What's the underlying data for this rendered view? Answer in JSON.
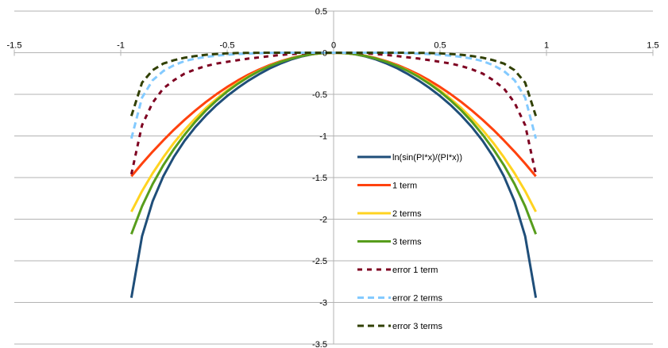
{
  "chart_data": {
    "type": "line",
    "title": "",
    "xlabel": "",
    "ylabel": "",
    "xlim": [
      -1.5,
      1.5
    ],
    "ylim": [
      -3.5,
      0.5
    ],
    "x_ticks": [
      -1.5,
      -1,
      -0.5,
      0,
      0.5,
      1,
      1.5
    ],
    "y_ticks": [
      0.5,
      0,
      -0.5,
      -1,
      -1.5,
      -2,
      -2.5,
      -3,
      -3.5
    ],
    "x_tick_labels": [
      "-1.5",
      "-1",
      "-0.5",
      "0",
      "0.5",
      "1",
      "1.5"
    ],
    "y_tick_labels": [
      "0.5",
      "0",
      "-0.5",
      "-1",
      "-1.5",
      "-2",
      "-2.5",
      "-3",
      "-3.5"
    ],
    "grid": "horizontal",
    "legend": "center-right",
    "series": [
      {
        "name": "ln(sin(PI*x)/(PI*x))",
        "color": "#1f4e79",
        "style": "solid",
        "x": [
          -0.95,
          -0.9,
          -0.85,
          -0.8,
          -0.75,
          -0.7,
          -0.65,
          -0.6,
          -0.55,
          -0.5,
          -0.45,
          -0.4,
          -0.35,
          -0.3,
          -0.25,
          -0.2,
          -0.15,
          -0.1,
          -0.05,
          0,
          0.05,
          0.1,
          0.15,
          0.2,
          0.25,
          0.3,
          0.35,
          0.4,
          0.45,
          0.5,
          0.55,
          0.6,
          0.65,
          0.7,
          0.75,
          0.8,
          0.85,
          0.9,
          0.95
        ],
        "y": [
          -2.944,
          -2.206,
          -1.784,
          -1.484,
          -1.25,
          -1.058,
          -0.895,
          -0.754,
          -0.63,
          -0.52,
          -0.423,
          -0.335,
          -0.258,
          -0.189,
          -0.13,
          -0.082,
          -0.045,
          -0.018,
          -0.004,
          0,
          -0.004,
          -0.018,
          -0.045,
          -0.082,
          -0.13,
          -0.189,
          -0.258,
          -0.335,
          -0.423,
          -0.52,
          -0.63,
          -0.754,
          -0.895,
          -1.058,
          -1.25,
          -1.484,
          -1.784,
          -2.206,
          -2.944
        ]
      },
      {
        "name": "1 term",
        "color": "#ff420e",
        "style": "solid",
        "x": [
          -0.95,
          -0.9,
          -0.85,
          -0.8,
          -0.75,
          -0.7,
          -0.65,
          -0.6,
          -0.55,
          -0.5,
          -0.45,
          -0.4,
          -0.35,
          -0.3,
          -0.25,
          -0.2,
          -0.15,
          -0.1,
          -0.05,
          0,
          0.05,
          0.1,
          0.15,
          0.2,
          0.25,
          0.3,
          0.35,
          0.4,
          0.45,
          0.5,
          0.55,
          0.6,
          0.65,
          0.7,
          0.75,
          0.8,
          0.85,
          0.9,
          0.95
        ],
        "y": [
          -1.485,
          -1.332,
          -1.189,
          -1.053,
          -0.925,
          -0.806,
          -0.695,
          -0.592,
          -0.498,
          -0.411,
          -0.333,
          -0.263,
          -0.202,
          -0.148,
          -0.103,
          -0.066,
          -0.037,
          -0.016,
          -0.004,
          0,
          -0.004,
          -0.016,
          -0.037,
          -0.066,
          -0.103,
          -0.148,
          -0.202,
          -0.263,
          -0.333,
          -0.411,
          -0.498,
          -0.592,
          -0.695,
          -0.806,
          -0.925,
          -1.053,
          -1.189,
          -1.332,
          -1.485
        ]
      },
      {
        "name": "2 terms",
        "color": "#ffd320",
        "style": "solid",
        "x": [
          -0.95,
          -0.9,
          -0.85,
          -0.8,
          -0.75,
          -0.7,
          -0.65,
          -0.6,
          -0.55,
          -0.5,
          -0.45,
          -0.4,
          -0.35,
          -0.3,
          -0.25,
          -0.2,
          -0.15,
          -0.1,
          -0.05,
          0,
          0.05,
          0.1,
          0.15,
          0.2,
          0.25,
          0.3,
          0.35,
          0.4,
          0.45,
          0.5,
          0.55,
          0.6,
          0.65,
          0.7,
          0.75,
          0.8,
          0.85,
          0.9,
          0.95
        ],
        "y": [
          -1.91,
          -1.663,
          -1.448,
          -1.256,
          -1.083,
          -0.928,
          -0.79,
          -0.665,
          -0.554,
          -0.453,
          -0.363,
          -0.284,
          -0.216,
          -0.158,
          -0.109,
          -0.07,
          -0.039,
          -0.017,
          -0.004,
          0,
          -0.004,
          -0.017,
          -0.039,
          -0.07,
          -0.109,
          -0.158,
          -0.216,
          -0.284,
          -0.363,
          -0.453,
          -0.554,
          -0.665,
          -0.79,
          -0.928,
          -1.083,
          -1.256,
          -1.448,
          -1.663,
          -1.91
        ]
      },
      {
        "name": "3 terms",
        "color": "#579d1c",
        "style": "solid",
        "x": [
          -0.95,
          -0.9,
          -0.85,
          -0.8,
          -0.75,
          -0.7,
          -0.65,
          -0.6,
          -0.55,
          -0.5,
          -0.45,
          -0.4,
          -0.35,
          -0.3,
          -0.25,
          -0.2,
          -0.15,
          -0.1,
          -0.05,
          0,
          0.05,
          0.1,
          0.15,
          0.2,
          0.25,
          0.3,
          0.35,
          0.4,
          0.45,
          0.5,
          0.55,
          0.6,
          0.65,
          0.7,
          0.75,
          0.8,
          0.85,
          0.9,
          0.95
        ],
        "y": [
          -2.18,
          -1.846,
          -1.577,
          -1.351,
          -1.157,
          -0.985,
          -0.83,
          -0.693,
          -0.574,
          -0.467,
          -0.373,
          -0.291,
          -0.221,
          -0.161,
          -0.111,
          -0.071,
          -0.04,
          -0.017,
          -0.004,
          0,
          -0.004,
          -0.017,
          -0.04,
          -0.071,
          -0.111,
          -0.161,
          -0.221,
          -0.291,
          -0.373,
          -0.467,
          -0.574,
          -0.693,
          -0.83,
          -0.985,
          -1.157,
          -1.351,
          -1.577,
          -1.846,
          -2.18
        ]
      },
      {
        "name": "error 1 term",
        "color": "#7e0021",
        "style": "dotted",
        "x": [
          -0.95,
          -0.9,
          -0.85,
          -0.8,
          -0.75,
          -0.7,
          -0.65,
          -0.6,
          -0.55,
          -0.5,
          -0.45,
          -0.4,
          -0.35,
          -0.3,
          -0.25,
          -0.2,
          -0.15,
          -0.1,
          -0.05,
          0,
          0.05,
          0.1,
          0.15,
          0.2,
          0.25,
          0.3,
          0.35,
          0.4,
          0.45,
          0.5,
          0.55,
          0.6,
          0.65,
          0.7,
          0.75,
          0.8,
          0.85,
          0.9,
          0.95
        ],
        "y": [
          -1.46,
          -0.87,
          -0.6,
          -0.43,
          -0.33,
          -0.25,
          -0.2,
          -0.16,
          -0.13,
          -0.11,
          -0.09,
          -0.07,
          -0.056,
          -0.041,
          -0.027,
          -0.016,
          -0.008,
          -0.002,
          0,
          0,
          0,
          -0.002,
          -0.008,
          -0.016,
          -0.027,
          -0.041,
          -0.056,
          -0.07,
          -0.09,
          -0.11,
          -0.13,
          -0.16,
          -0.2,
          -0.25,
          -0.33,
          -0.43,
          -0.6,
          -0.87,
          -1.46
        ]
      },
      {
        "name": "error 2 terms",
        "color": "#83caff",
        "style": "dashed",
        "x": [
          -0.95,
          -0.9,
          -0.85,
          -0.8,
          -0.75,
          -0.7,
          -0.65,
          -0.6,
          -0.55,
          -0.5,
          -0.45,
          -0.4,
          -0.35,
          -0.3,
          -0.25,
          -0.2,
          -0.15,
          -0.1,
          -0.05,
          0,
          0.05,
          0.1,
          0.15,
          0.2,
          0.25,
          0.3,
          0.35,
          0.4,
          0.45,
          0.5,
          0.55,
          0.6,
          0.65,
          0.7,
          0.75,
          0.8,
          0.85,
          0.9,
          0.95
        ],
        "y": [
          -1.03,
          -0.54,
          -0.33,
          -0.22,
          -0.15,
          -0.1,
          -0.07,
          -0.05,
          -0.035,
          -0.025,
          -0.016,
          -0.01,
          -0.006,
          -0.003,
          -0.001,
          0,
          0,
          0,
          0,
          0,
          0,
          0,
          0,
          0,
          -0.001,
          -0.003,
          -0.006,
          -0.01,
          -0.016,
          -0.025,
          -0.035,
          -0.05,
          -0.07,
          -0.1,
          -0.15,
          -0.22,
          -0.33,
          -0.54,
          -1.03
        ]
      },
      {
        "name": "error 3 terms",
        "color": "#314004",
        "style": "dashed",
        "x": [
          -0.95,
          -0.9,
          -0.85,
          -0.8,
          -0.75,
          -0.7,
          -0.65,
          -0.6,
          -0.55,
          -0.5,
          -0.45,
          -0.4,
          -0.35,
          -0.3,
          -0.25,
          -0.2,
          -0.15,
          -0.1,
          -0.05,
          0,
          0.05,
          0.1,
          0.15,
          0.2,
          0.25,
          0.3,
          0.35,
          0.4,
          0.45,
          0.5,
          0.55,
          0.6,
          0.65,
          0.7,
          0.75,
          0.8,
          0.85,
          0.9,
          0.95
        ],
        "y": [
          -0.76,
          -0.36,
          -0.21,
          -0.13,
          -0.09,
          -0.06,
          -0.04,
          -0.025,
          -0.015,
          -0.008,
          -0.004,
          -0.002,
          -0.001,
          0,
          0,
          0,
          0,
          0,
          0,
          0,
          0,
          0,
          0,
          0,
          0,
          0,
          -0.001,
          -0.002,
          -0.004,
          -0.008,
          -0.015,
          -0.025,
          -0.04,
          -0.06,
          -0.09,
          -0.13,
          -0.21,
          -0.36,
          -0.76
        ]
      }
    ]
  }
}
